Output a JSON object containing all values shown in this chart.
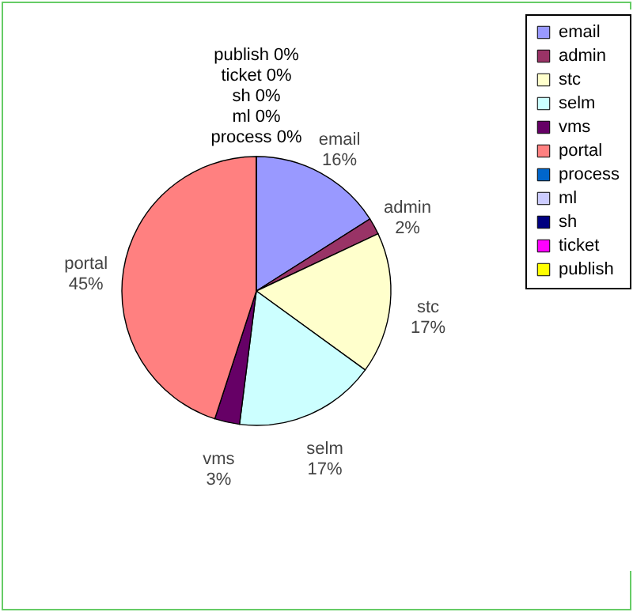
{
  "chart_data": {
    "type": "pie",
    "categories": [
      "email",
      "admin",
      "stc",
      "selm",
      "vms",
      "portal",
      "process",
      "ml",
      "sh",
      "ticket",
      "publish"
    ],
    "values": [
      16,
      2,
      17,
      17,
      3,
      45,
      0,
      0,
      0,
      0,
      0
    ],
    "value_labels": [
      "16%",
      "2%",
      "17%",
      "17%",
      "3%",
      "45%",
      "0%",
      "0%",
      "0%",
      "0%",
      "0%"
    ],
    "colors": [
      "#9999ff",
      "#993366",
      "#ffffcc",
      "#ccffff",
      "#660066",
      "#ff8080",
      "#0066cc",
      "#ccccff",
      "#000080",
      "#ff00ff",
      "#ffff00"
    ],
    "legend": "right"
  }
}
